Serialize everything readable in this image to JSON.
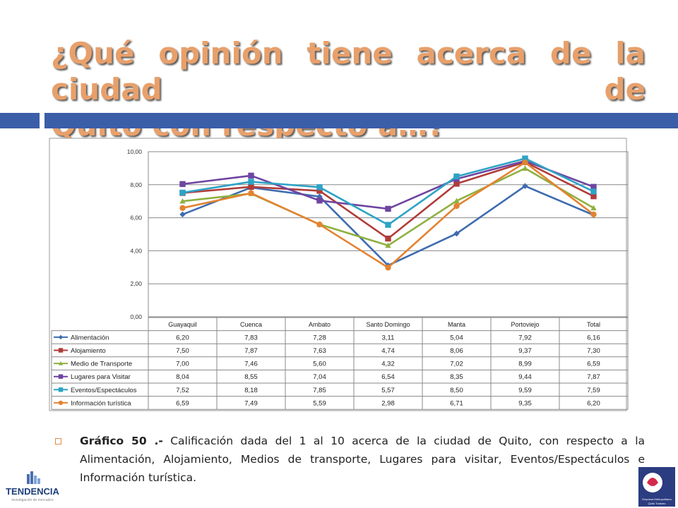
{
  "title": {
    "line1": "¿Qué opinión tiene acerca de la ciudad de",
    "line2": "Quito con respecto a…?"
  },
  "caption": {
    "label": "Gráfico 50 .-",
    "text": " Calificación dada del 1 al 10 acerca de la ciudad de Quito, con respecto a la Alimentación, Alojamiento, Medios de transporte, Lugares para visitar, Eventos/Espectáculos e Información turística."
  },
  "logos": {
    "left_name": "TENDENCIA",
    "left_sub": "investigación de mercados",
    "right_text": "Empresa Metropolitana Quito Turismo"
  },
  "colors": {
    "accent_bar": "#3b5ea8",
    "title": "#e8a06b"
  },
  "chart_data": {
    "type": "line",
    "categories": [
      "Guayaquil",
      "Cuenca",
      "Ambato",
      "Santo Domingo",
      "Manta",
      "Portoviejo",
      "Total"
    ],
    "ylim": [
      0,
      10
    ],
    "yticks": [
      "0,00",
      "2,00",
      "4,00",
      "6,00",
      "8,00",
      "10,00"
    ],
    "grid": true,
    "legend": "data-table-below",
    "series": [
      {
        "name": "Alimentación",
        "color": "#3e6cb0",
        "marker": "diamond",
        "values": [
          6.2,
          7.83,
          7.28,
          3.11,
          5.04,
          7.92,
          6.16
        ],
        "labels": [
          "6,20",
          "7,83",
          "7,28",
          "3,11",
          "5,04",
          "7,92",
          "6,16"
        ]
      },
      {
        "name": "Alojamiento",
        "color": "#b03c3a",
        "marker": "square",
        "values": [
          7.5,
          7.87,
          7.63,
          4.74,
          8.06,
          9.37,
          7.3
        ],
        "labels": [
          "7,50",
          "7,87",
          "7,63",
          "4,74",
          "8,06",
          "9,37",
          "7,30"
        ]
      },
      {
        "name": "Medio de Transporte",
        "color": "#8fb040",
        "marker": "triangle",
        "values": [
          7.0,
          7.46,
          5.6,
          4.32,
          7.02,
          8.99,
          6.59
        ],
        "labels": [
          "7,00",
          "7,46",
          "5,60",
          "4,32",
          "7,02",
          "8,99",
          "6,59"
        ]
      },
      {
        "name": "Lugares para Visitar",
        "color": "#6e45a0",
        "marker": "square",
        "values": [
          8.04,
          8.55,
          7.04,
          6.54,
          8.35,
          9.44,
          7.87
        ],
        "labels": [
          "8,04",
          "8,55",
          "7,04",
          "6,54",
          "8,35",
          "9,44",
          "7,87"
        ]
      },
      {
        "name": "Eventos/Espectáculos",
        "color": "#2ea3c6",
        "marker": "square",
        "values": [
          7.52,
          8.18,
          7.85,
          5.57,
          8.5,
          9.59,
          7.59
        ],
        "labels": [
          "7,52",
          "8,18",
          "7,85",
          "5,57",
          "8,50",
          "9,59",
          "7,59"
        ]
      },
      {
        "name": "Información turística",
        "color": "#e38331",
        "marker": "circle",
        "values": [
          6.59,
          7.49,
          5.59,
          2.98,
          6.71,
          9.35,
          6.2
        ],
        "labels": [
          "6,59",
          "7,49",
          "5,59",
          "2,98",
          "6,71",
          "9,35",
          "6,20"
        ]
      }
    ]
  }
}
